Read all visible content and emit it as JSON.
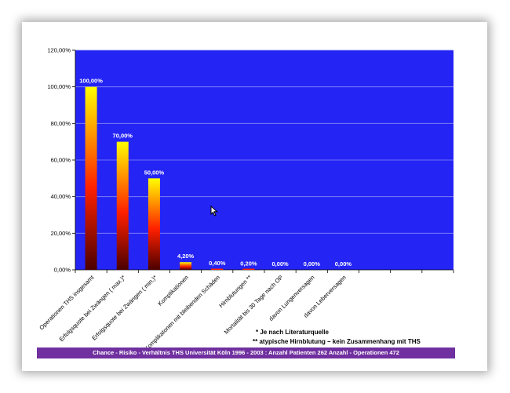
{
  "chart_data": {
    "type": "bar",
    "categories": [
      "Operationen THS insgesamt",
      "Erfolgsquote bei Zwängen ( max.)*",
      "Erfolgsquote bei Zwängen ( min.)*",
      "Komplikationen",
      "Komplikatonen mit bleibenden Schäden",
      "Hirnblutungen **",
      "Mortalität bis 30 Tage nach OP",
      "davon Lungenversagen",
      "davon Leberversagen",
      "",
      "",
      ""
    ],
    "values": [
      100,
      70,
      50,
      4.2,
      0.4,
      0.2,
      0,
      0,
      0,
      null,
      null,
      null
    ],
    "data_labels": [
      "100,00%",
      "70,00%",
      "50,00%",
      "4,20%",
      "0,40%",
      "0,20%",
      "0,00%",
      "0,00%",
      "0,00%",
      "",
      "",
      ""
    ],
    "y_ticks": [
      "0,00%",
      "20,00%",
      "40,00%",
      "60,00%",
      "80,00%",
      "100,00%",
      "120,00%"
    ],
    "ylim": [
      0,
      120
    ],
    "y_tick_values": [
      0,
      20,
      40,
      60,
      80,
      100,
      120
    ],
    "title": "",
    "xlabel": "",
    "ylabel": "",
    "grid": true,
    "colors": {
      "plot_bg": "#2424f5",
      "gridline": "#8a8af7",
      "bar_top": "#ffff00",
      "bar_mid": "#ff2000",
      "bar_bottom": "#4a0000",
      "label": "#ffffff"
    }
  },
  "footnotes": {
    "line1": "* Je nach Literaturquelle",
    "line2": "** atypische Hirnblutung – kein Zusammenhang mit THS"
  },
  "banner": {
    "text": "Chance - Risiko - Verhältnis  THS Universität Köln 1996 - 2003 : Anzahl Patienten 262 Anzahl -  Operationen 472",
    "color": "#7030a0"
  },
  "icons": {
    "cursor": "mouse-pointer-icon"
  }
}
